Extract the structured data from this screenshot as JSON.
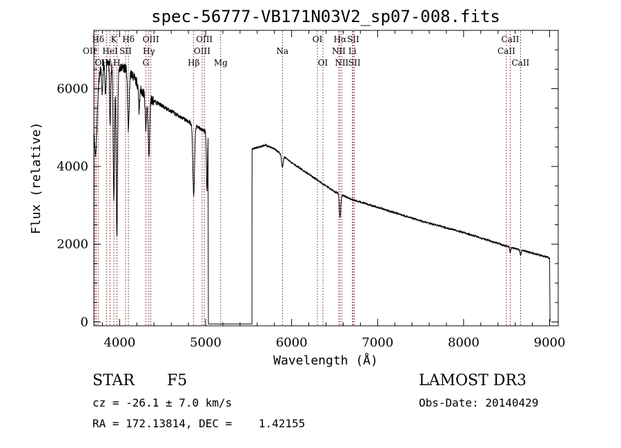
{
  "chart_data": {
    "type": "line",
    "title": "spec-56777-VB171N03V2_sp07-008.fits",
    "xlabel": "Wavelength (Å)",
    "ylabel": "Flux (relative)",
    "xlim": [
      3700,
      9100
    ],
    "ylim": [
      -100,
      7500
    ],
    "xticks": [
      4000,
      5000,
      6000,
      7000,
      8000,
      9000
    ],
    "yticks": [
      0,
      2000,
      4000,
      6000
    ],
    "xtick_labels": [
      "4000",
      "5000",
      "6000",
      "7000",
      "8000",
      "9000"
    ],
    "ytick_labels": [
      "0",
      "2000",
      "4000",
      "6000"
    ],
    "gap": [
      5030,
      5540
    ],
    "continuum_blue": [
      [
        3700,
        6000
      ],
      [
        3780,
        6500
      ],
      [
        3850,
        6750
      ],
      [
        3950,
        6500
      ],
      [
        4050,
        6550
      ],
      [
        4150,
        6350
      ],
      [
        4250,
        5950
      ],
      [
        4350,
        5750
      ],
      [
        4500,
        5550
      ],
      [
        4650,
        5350
      ],
      [
        4800,
        5150
      ],
      [
        4950,
        4950
      ],
      [
        5030,
        4850
      ]
    ],
    "continuum_red": [
      [
        5540,
        4450
      ],
      [
        5700,
        4550
      ],
      [
        5800,
        4450
      ],
      [
        6000,
        4100
      ],
      [
        6300,
        3650
      ],
      [
        6500,
        3350
      ],
      [
        6700,
        3150
      ],
      [
        7000,
        2950
      ],
      [
        7500,
        2600
      ],
      [
        8000,
        2300
      ],
      [
        8500,
        1950
      ],
      [
        9000,
        1650
      ]
    ],
    "absorption_features": [
      {
        "x": 3720,
        "depth": 1800,
        "width": 18
      },
      {
        "x": 3797,
        "depth": 800,
        "width": 6
      },
      {
        "x": 3835,
        "depth": 900,
        "width": 7
      },
      {
        "x": 3889,
        "depth": 1600,
        "width": 7
      },
      {
        "x": 3933,
        "depth": 3400,
        "width": 8
      },
      {
        "x": 3968,
        "depth": 4300,
        "width": 8
      },
      {
        "x": 4102,
        "depth": 1500,
        "width": 9
      },
      {
        "x": 4227,
        "depth": 600,
        "width": 6
      },
      {
        "x": 4305,
        "depth": 900,
        "width": 8
      },
      {
        "x": 4340,
        "depth": 1500,
        "width": 9
      },
      {
        "x": 4861,
        "depth": 1800,
        "width": 10
      },
      {
        "x": 5015,
        "depth": 1500,
        "width": 6
      },
      {
        "x": 5893,
        "depth": 300,
        "width": 10
      },
      {
        "x": 6563,
        "depth": 600,
        "width": 8
      },
      {
        "x": 8542,
        "depth": 150,
        "width": 6
      },
      {
        "x": 8662,
        "depth": 150,
        "width": 6
      }
    ],
    "line_markers": [
      {
        "label": "Hδ",
        "x": 3750,
        "row": 0,
        "ha": "center"
      },
      {
        "label": "OII",
        "x": 3727,
        "row": 1,
        "ha": "right"
      },
      {
        "label": "OIII",
        "x": 3712,
        "row": 2,
        "ha": "left"
      },
      {
        "label": "K",
        "x": 3933,
        "row": 0,
        "ha": "center"
      },
      {
        "label": "HeI",
        "x": 3889,
        "row": 1,
        "ha": "center"
      },
      {
        "label": "Hε",
        "x": 3850,
        "row": 2,
        "ha": "center"
      },
      {
        "label": "Hδ",
        "x": 4102,
        "row": 0,
        "ha": "center"
      },
      {
        "label": "SII",
        "x": 4069,
        "row": 1,
        "ha": "center"
      },
      {
        "label": "H",
        "x": 3968,
        "row": 2,
        "ha": "center"
      },
      {
        "label": "OIII",
        "x": 4363,
        "row": 0,
        "ha": "center"
      },
      {
        "label": "Hγ",
        "x": 4340,
        "row": 1,
        "ha": "center"
      },
      {
        "label": "G",
        "x": 4304,
        "row": 2,
        "ha": "center"
      },
      {
        "label": "OIII",
        "x": 4985,
        "row": 0,
        "ha": "center"
      },
      {
        "label": "OIII",
        "x": 4959,
        "row": 1,
        "ha": "center"
      },
      {
        "label": "Hβ",
        "x": 4861,
        "row": 2,
        "ha": "center"
      },
      {
        "label": "Mg",
        "x": 5175,
        "row": 2,
        "ha": "center"
      },
      {
        "label": "Na",
        "x": 5893,
        "row": 1,
        "ha": "center"
      },
      {
        "label": "OI",
        "x": 6300,
        "row": 0,
        "ha": "center"
      },
      {
        "label": "OI",
        "x": 6364,
        "row": 2,
        "ha": "center"
      },
      {
        "label": "Hα",
        "x": 6563,
        "row": 0,
        "ha": "center"
      },
      {
        "label": "SII",
        "x": 6716,
        "row": 0,
        "ha": "center"
      },
      {
        "label": "NII",
        "x": 6548,
        "row": 1,
        "ha": "center"
      },
      {
        "label": "Li",
        "x": 6707,
        "row": 1,
        "ha": "center"
      },
      {
        "label": "NII",
        "x": 6583,
        "row": 2,
        "ha": "center"
      },
      {
        "label": "SII",
        "x": 6731,
        "row": 2,
        "ha": "center"
      },
      {
        "label": "CaII",
        "x": 8542,
        "row": 0,
        "ha": "center"
      },
      {
        "label": "CaII",
        "x": 8498,
        "row": 1,
        "ha": "center"
      },
      {
        "label": "CaII",
        "x": 8662,
        "row": 2,
        "ha": "center"
      }
    ],
    "marker_color": "#8b1a1a",
    "spectrum_color": "#000000"
  },
  "info": {
    "class_label": "STAR",
    "subclass": "F5",
    "cz_text": "cz = -26.1 ± 7.0 km/s",
    "coords_text": "RA = 172.13814, DEC =    1.42155",
    "survey": "LAMOST DR3",
    "obs_date_text": "Obs-Date: 20140429"
  }
}
